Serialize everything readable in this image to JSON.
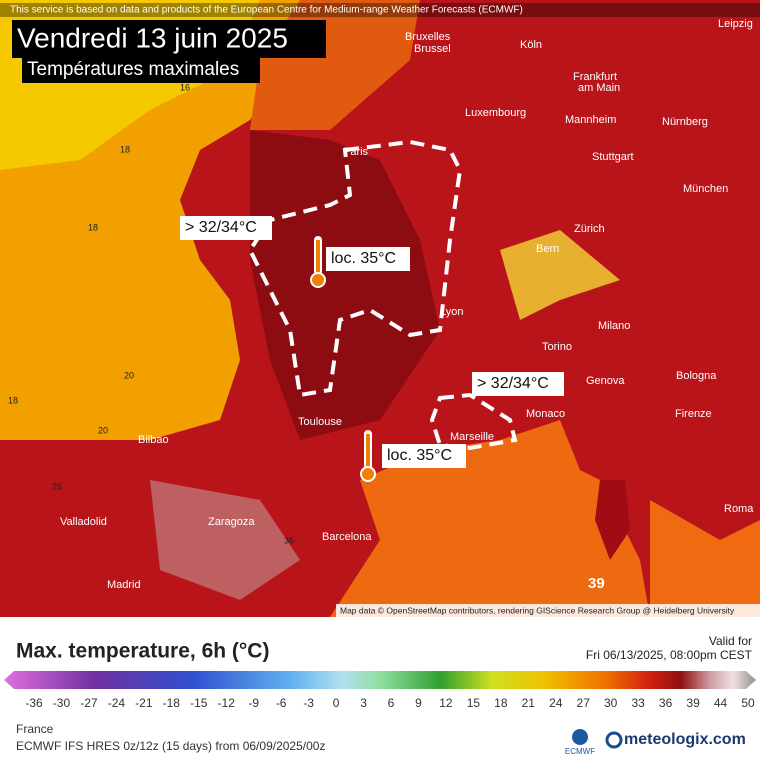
{
  "header": {
    "notice": "This service is based on data and products of the European Centre for Medium-range Weather Forecasts (ECMWF)",
    "title": "Vendredi 13 juin 2025",
    "subtitle": "Températures maximales"
  },
  "annotations": [
    "> 32/34°C",
    "loc. 35°C",
    "> 32/34°C",
    "loc. 35°C"
  ],
  "cities": [
    "Bruxelles",
    "Brussel",
    "Köln",
    "Leipzig",
    "Frankfurt",
    "am Main",
    "Luxembourg",
    "Mannheim",
    "Nürnberg",
    "Paris",
    "Stuttgart",
    "München",
    "Zürich",
    "Bern",
    "Lyon",
    "Milano",
    "Torino",
    "Genova",
    "Bologna",
    "Monaco",
    "Firenze",
    "Toulouse",
    "Marseille",
    "Bilbao",
    "Zaragoza",
    "Valladolid",
    "Barcelona",
    "Roma",
    "Madrid"
  ],
  "map_values": [
    "16",
    "18",
    "18",
    "20",
    "20",
    "18",
    "26",
    "36",
    "39"
  ],
  "attribution": "Map data © OpenStreetMap contributors, rendering GIScience Research Group @ Heidelberg University",
  "legend": {
    "title": "Max. temperature, 6h (°C)",
    "valid_label": "Valid for",
    "valid_time": "Fri 06/13/2025, 08:00pm CEST",
    "ticks": [
      -36,
      -30,
      -27,
      -24,
      -21,
      -18,
      -15,
      -12,
      -9,
      -6,
      -3,
      0,
      3,
      6,
      9,
      12,
      15,
      18,
      21,
      24,
      27,
      30,
      33,
      36,
      39,
      44,
      50
    ]
  },
  "footer": {
    "region": "France",
    "model": "ECMWF IFS HRES 0z/12z (15 days) from 06/09/2025/00z",
    "ecmwf": "ECMWF",
    "brand": "meteologix.com"
  }
}
